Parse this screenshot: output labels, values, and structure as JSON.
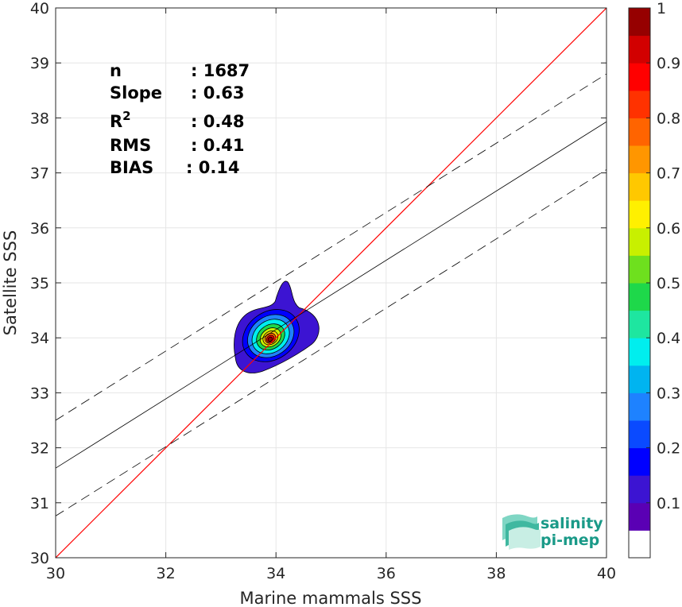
{
  "chart_data": {
    "type": "contour",
    "xlabel": "Marine mammals SSS",
    "ylabel": "Satellite SSS",
    "xlim": [
      30,
      40
    ],
    "ylim": [
      30,
      40
    ],
    "xticks": [
      "30",
      "32",
      "34",
      "36",
      "38",
      "40"
    ],
    "yticks": [
      "30",
      "31",
      "32",
      "33",
      "34",
      "35",
      "36",
      "37",
      "38",
      "39",
      "40"
    ],
    "grid": true,
    "density_peak": {
      "x": 33.9,
      "y": 34.0
    },
    "lines": [
      {
        "kind": "identity",
        "color": "#ff0000",
        "style": "solid",
        "x": [
          30,
          40
        ],
        "y": [
          30,
          40
        ]
      },
      {
        "kind": "regression",
        "color": "#000000",
        "style": "solid",
        "x": [
          30,
          40
        ],
        "y": [
          31.63,
          37.93
        ]
      },
      {
        "kind": "regression-upper",
        "color": "#000000",
        "style": "dashed",
        "x": [
          30,
          40
        ],
        "y": [
          32.5,
          38.8
        ]
      },
      {
        "kind": "regression-lower",
        "color": "#000000",
        "style": "dashed",
        "x": [
          30,
          40
        ],
        "y": [
          30.76,
          37.06
        ]
      }
    ],
    "stats": [
      {
        "label": "n",
        "value": ": 1687"
      },
      {
        "label": "Slope",
        "value": ": 0.63"
      },
      {
        "label": "R",
        "sup": "2",
        "value": ": 0.48"
      },
      {
        "label": "RMS",
        "value": ": 0.41"
      },
      {
        "label": "BIAS",
        "value": ": 0.14"
      }
    ],
    "colorbar": {
      "ticks": [
        "0.1",
        "0.2",
        "0.3",
        "0.4",
        "0.5",
        "0.6",
        "0.7",
        "0.8",
        "0.9",
        "1"
      ],
      "colors": [
        "#ffffff",
        "#5a00b4",
        "#3c14d2",
        "#0000ff",
        "#0a4aff",
        "#1e82ff",
        "#00b4f0",
        "#00eeee",
        "#1ee6a0",
        "#1ed84a",
        "#6ee01e",
        "#c8f000",
        "#fff000",
        "#ffc800",
        "#ff9600",
        "#ff6400",
        "#ff3200",
        "#ff0000",
        "#d20000",
        "#960000"
      ]
    }
  },
  "logo": {
    "line1": "salinity",
    "line2": "pi-mep"
  }
}
